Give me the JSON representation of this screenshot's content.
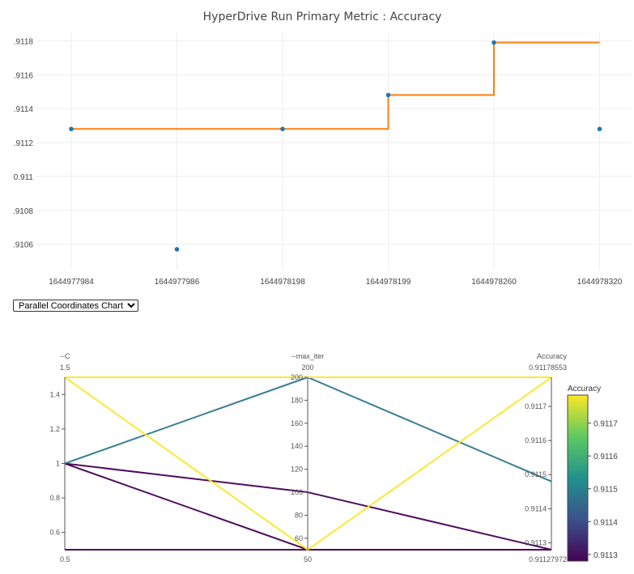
{
  "chart_data": [
    {
      "type": "scatter+step-line",
      "title": "HyperDrive Run Primary Metric : Accuracy",
      "categories": [
        "1644977984",
        "1644977986",
        "1644978198",
        "1644978199",
        "1644978260",
        "1644978320"
      ],
      "series": [
        {
          "values": [
            0.91128,
            0.91057,
            0.91128,
            0.91148,
            0.91179,
            0.91128
          ],
          "color": "#1f77b4"
        },
        {
          "values": [
            0.91128,
            0.91128,
            0.91128,
            0.91148,
            0.91179,
            0.91179
          ],
          "color": "#ff7f0e",
          "line_shape": "hv"
        }
      ],
      "ylim": [
        0.91045,
        0.91185
      ],
      "yticks": [
        0.9106,
        0.9108,
        0.911,
        0.9112,
        0.9114,
        0.9116,
        0.9118
      ],
      "ytick_labels": [
        ".9106",
        ".9108",
        "0.911",
        ".9112",
        ".9114",
        ".9116",
        ".9118"
      ],
      "grid": true
    },
    {
      "type": "parallel-coordinates",
      "dimensions": [
        {
          "label": "--C",
          "range": [
            0.5,
            1.5
          ],
          "min_label": "0.5",
          "max_label": "1.5",
          "ticks": [
            0.6,
            0.8,
            1,
            1.2,
            1.4
          ],
          "tick_labels": [
            "0.6",
            "0.8",
            "1",
            "1.2",
            "1.4"
          ]
        },
        {
          "label": "--max_iter",
          "range": [
            50,
            200
          ],
          "min_label": "50",
          "max_label": "200",
          "ticks": [
            60,
            80,
            100,
            120,
            140,
            160,
            180,
            200
          ],
          "tick_labels": [
            "60",
            "80",
            "100",
            "120",
            "140",
            "160",
            "180",
            "200"
          ]
        },
        {
          "label": "Accuracy",
          "range": [
            0.91127972,
            0.91178553
          ],
          "min_label": "0.91127972",
          "max_label": "0.91178553",
          "ticks": [
            0.9113,
            0.9114,
            0.9115,
            0.9116,
            0.9117
          ],
          "tick_labels": [
            "0.9113",
            "0.9114",
            "0.9115",
            "0.9116",
            "0.9117"
          ]
        }
      ],
      "lines": [
        {
          "values": [
            0.5,
            50,
            0.91127972
          ]
        },
        {
          "values": [
            1,
            50,
            0.91127972
          ]
        },
        {
          "values": [
            1,
            100,
            0.91127972
          ]
        },
        {
          "values": [
            1,
            200,
            0.91148
          ]
        },
        {
          "values": [
            1.5,
            200,
            0.91178553
          ]
        },
        {
          "values": [
            1.5,
            50,
            0.91178553
          ]
        }
      ],
      "colorbar": {
        "title": "Accuracy",
        "colorscale": "Viridis",
        "ticks": [
          0.9113,
          0.9114,
          0.9115,
          0.9116,
          0.9117
        ],
        "tick_labels": [
          "0.9113",
          "0.9114",
          "0.9115",
          "0.9116",
          "0.9117"
        ]
      }
    }
  ],
  "selector": {
    "selected": "Parallel Coordinates Chart"
  }
}
